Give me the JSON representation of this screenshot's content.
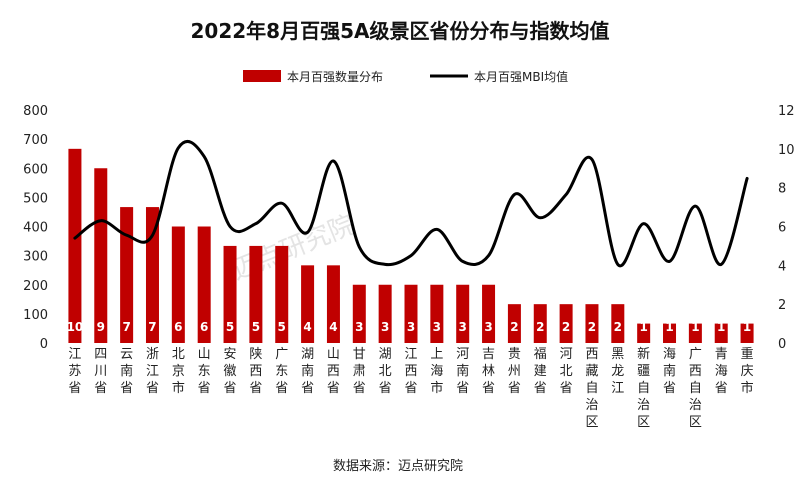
{
  "chart_data": {
    "type": "bar",
    "title": "2022年8月百强5A级景区省份分布与指数均值",
    "source": "数据来源：迈点研究院",
    "watermark": "迈点研究院",
    "categories": [
      "江苏省",
      "四川省",
      "云南省",
      "浙江省",
      "北京市",
      "山东省",
      "安徽省",
      "陕西省",
      "广东省",
      "湖南省",
      "山西省",
      "甘肃省",
      "湖北省",
      "江西省",
      "上海市",
      "河南省",
      "吉林省",
      "贵州省",
      "福建省",
      "河北省",
      "西藏自治区",
      "黑龙江",
      "新疆自治区",
      "海南省",
      "广西自治区",
      "青海省",
      "重庆市"
    ],
    "series": [
      {
        "name": "本月百强数量分布",
        "type": "bar",
        "axis": "right",
        "color": "#c00000",
        "values": [
          10,
          9,
          7,
          7,
          6,
          6,
          5,
          5,
          5,
          4,
          4,
          3,
          3,
          3,
          3,
          3,
          3,
          2,
          2,
          2,
          2,
          2,
          1,
          1,
          1,
          1,
          1
        ],
        "data_labels": [
          "10",
          "9",
          "7",
          "7",
          "6",
          "6",
          "5",
          "5",
          "5",
          "4",
          "4",
          "3",
          "3",
          "3",
          "3",
          "3",
          "3",
          "2",
          "2",
          "2",
          "2",
          "2",
          "1",
          "1",
          "1",
          "1",
          "1"
        ]
      },
      {
        "name": "本月百强MBI均值",
        "type": "line",
        "axis": "left",
        "color": "#000000",
        "values": [
          360,
          420,
          370,
          370,
          670,
          640,
          400,
          410,
          480,
          380,
          625,
          330,
          270,
          300,
          390,
          280,
          300,
          510,
          430,
          510,
          630,
          270,
          410,
          280,
          470,
          270,
          565
        ]
      }
    ],
    "left_axis": {
      "ylim": [
        0,
        800
      ],
      "ticks": [
        "0",
        "100",
        "200",
        "300",
        "400",
        "500",
        "600",
        "700",
        "800"
      ]
    },
    "right_axis": {
      "ylim": [
        0,
        12
      ],
      "ticks": [
        "0",
        "2",
        "4",
        "6",
        "8",
        "10",
        "12"
      ]
    },
    "legend_position": "top-center",
    "grid": false
  }
}
